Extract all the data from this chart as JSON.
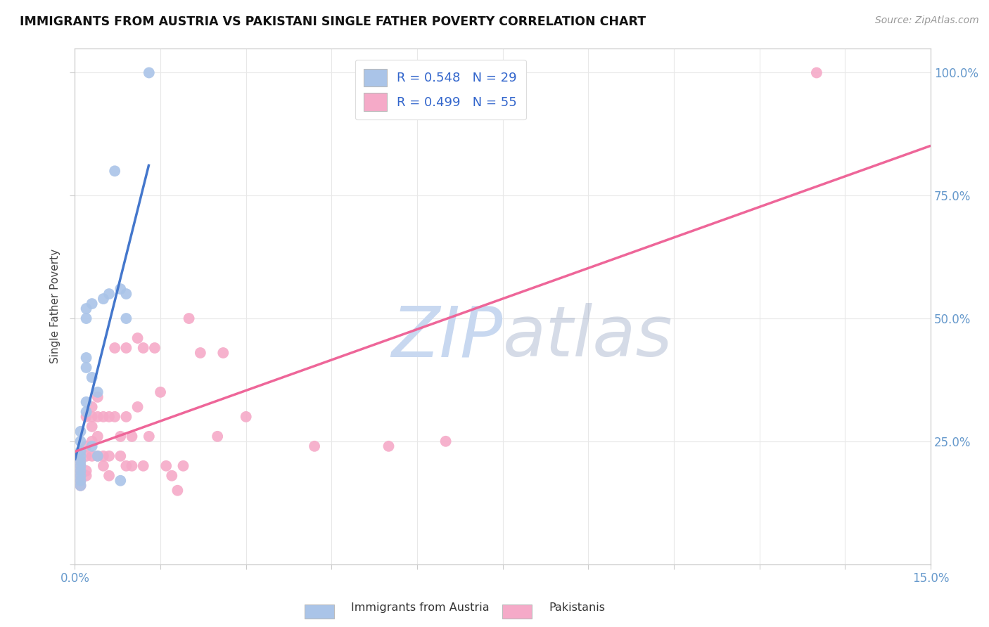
{
  "title": "IMMIGRANTS FROM AUSTRIA VS PAKISTANI SINGLE FATHER POVERTY CORRELATION CHART",
  "source": "Source: ZipAtlas.com",
  "ylabel": "Single Father Poverty",
  "xlim": [
    0,
    0.15
  ],
  "ylim": [
    0,
    1.05
  ],
  "austria_R": 0.548,
  "austria_N": 29,
  "pakistan_R": 0.499,
  "pakistan_N": 55,
  "austria_color": "#aac4e8",
  "pakistan_color": "#f5aac8",
  "austria_line_color": "#4477cc",
  "pakistan_line_color": "#ee6699",
  "background_color": "#ffffff",
  "grid_color": "#e8e8e8",
  "tick_color": "#6699cc",
  "title_color": "#111111",
  "ylabel_color": "#444444",
  "legend_text_color": "#111111",
  "legend_value_color": "#3366cc",
  "watermark_zip_color": "#c8d8f0",
  "watermark_atlas_color": "#8899bb",
  "austria_x": [
    0.001,
    0.001,
    0.001,
    0.001,
    0.001,
    0.001,
    0.001,
    0.001,
    0.001,
    0.001,
    0.002,
    0.002,
    0.002,
    0.002,
    0.002,
    0.002,
    0.003,
    0.003,
    0.003,
    0.004,
    0.004,
    0.005,
    0.006,
    0.007,
    0.008,
    0.008,
    0.009,
    0.009,
    0.013
  ],
  "austria_y": [
    0.2,
    0.21,
    0.22,
    0.23,
    0.19,
    0.18,
    0.17,
    0.16,
    0.25,
    0.27,
    0.31,
    0.33,
    0.4,
    0.42,
    0.5,
    0.52,
    0.53,
    0.38,
    0.24,
    0.35,
    0.22,
    0.54,
    0.55,
    0.8,
    0.17,
    0.56,
    0.5,
    0.55,
    1.0
  ],
  "pakistan_x": [
    0.001,
    0.001,
    0.001,
    0.001,
    0.001,
    0.001,
    0.002,
    0.002,
    0.002,
    0.002,
    0.002,
    0.003,
    0.003,
    0.003,
    0.003,
    0.003,
    0.004,
    0.004,
    0.004,
    0.004,
    0.005,
    0.005,
    0.005,
    0.006,
    0.006,
    0.006,
    0.007,
    0.007,
    0.008,
    0.008,
    0.009,
    0.009,
    0.009,
    0.01,
    0.01,
    0.011,
    0.011,
    0.012,
    0.012,
    0.013,
    0.014,
    0.015,
    0.016,
    0.017,
    0.018,
    0.019,
    0.02,
    0.022,
    0.025,
    0.026,
    0.03,
    0.042,
    0.055,
    0.065,
    0.13
  ],
  "pakistan_y": [
    0.19,
    0.18,
    0.17,
    0.16,
    0.2,
    0.21,
    0.18,
    0.19,
    0.22,
    0.24,
    0.3,
    0.22,
    0.25,
    0.28,
    0.3,
    0.32,
    0.22,
    0.26,
    0.3,
    0.34,
    0.2,
    0.22,
    0.3,
    0.18,
    0.22,
    0.3,
    0.3,
    0.44,
    0.22,
    0.26,
    0.2,
    0.3,
    0.44,
    0.2,
    0.26,
    0.32,
    0.46,
    0.2,
    0.44,
    0.26,
    0.44,
    0.35,
    0.2,
    0.18,
    0.15,
    0.2,
    0.5,
    0.43,
    0.26,
    0.43,
    0.3,
    0.24,
    0.24,
    0.25,
    1.0
  ],
  "austria_line_x": [
    0.0,
    0.013
  ],
  "pakistan_line_x": [
    0.0,
    0.15
  ]
}
